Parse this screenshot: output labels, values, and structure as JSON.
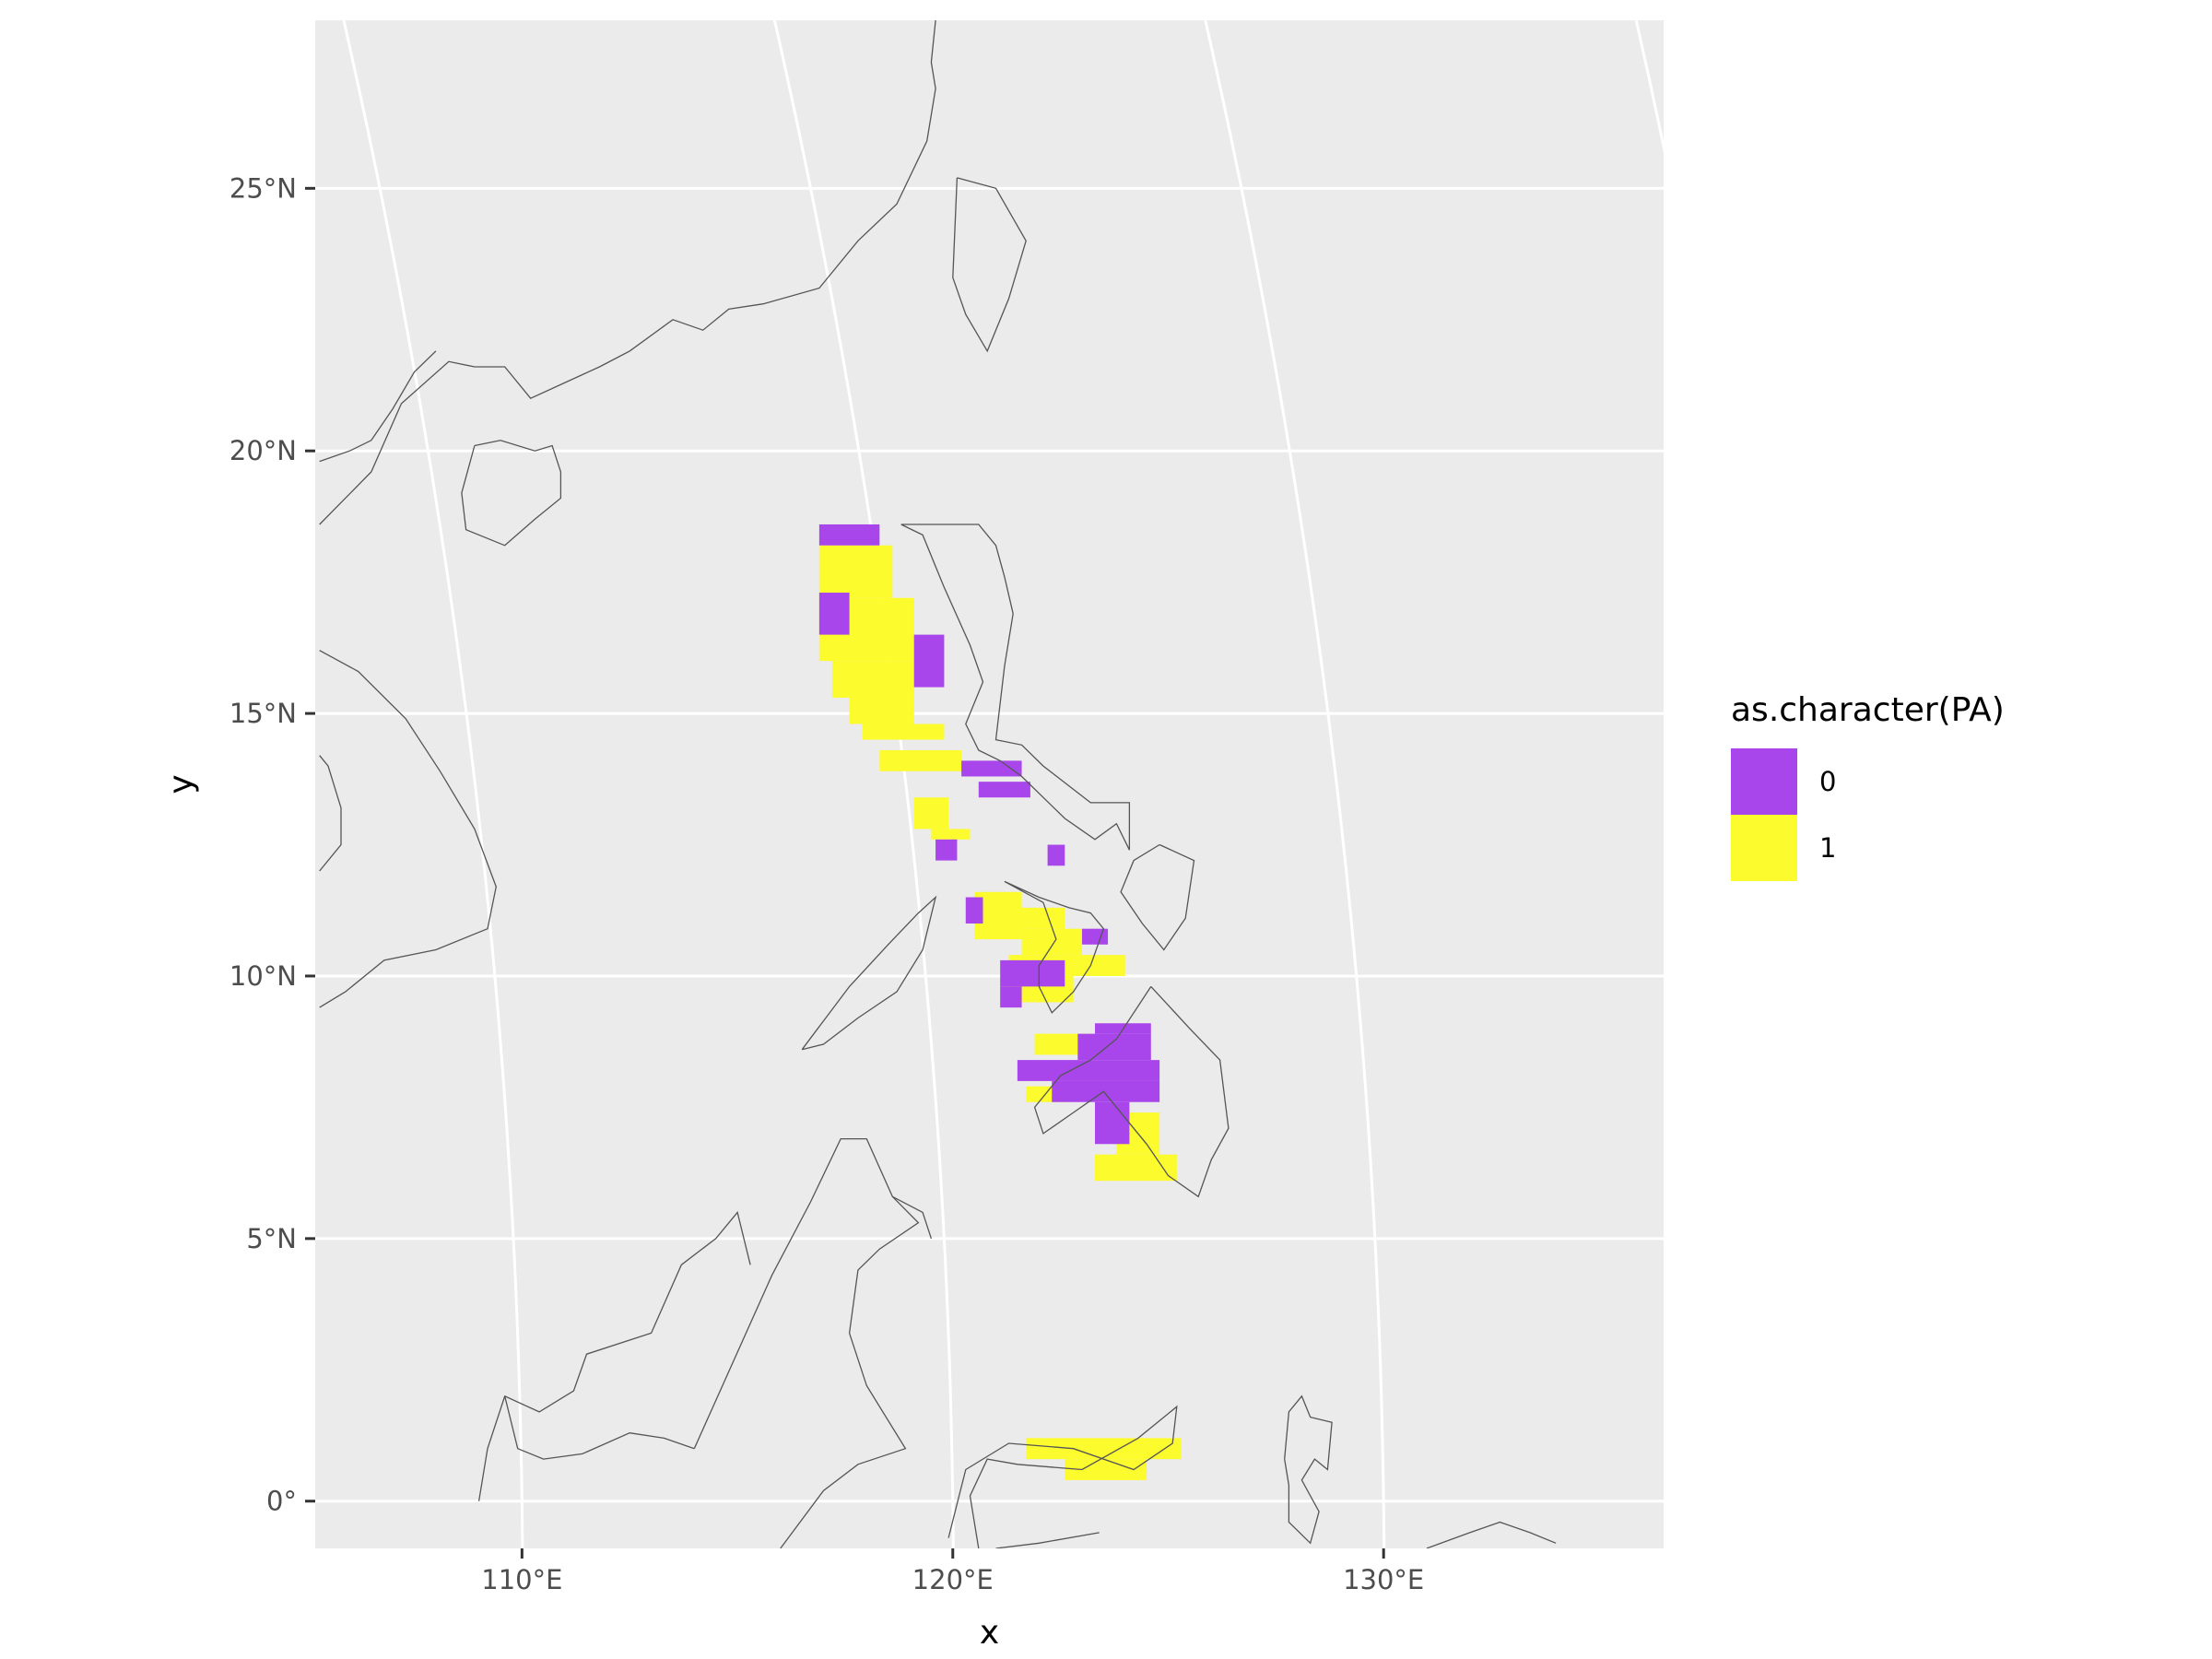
{
  "chart_data": {
    "type": "heatmap",
    "title": "",
    "xlabel": "x",
    "ylabel": "y",
    "xlim": [
      105.2,
      136.5
    ],
    "ylim": [
      -0.9,
      28.2
    ],
    "x_ticks": [
      {
        "value": 110,
        "label": "110°E"
      },
      {
        "value": 120,
        "label": "120°E"
      },
      {
        "value": 130,
        "label": "130°E"
      }
    ],
    "y_ticks": [
      {
        "value": 0,
        "label": "0°"
      },
      {
        "value": 5,
        "label": "5°N"
      },
      {
        "value": 10,
        "label": "10°N"
      },
      {
        "value": 15,
        "label": "15°N"
      },
      {
        "value": 20,
        "label": "20°N"
      },
      {
        "value": 25,
        "label": "25°N"
      }
    ],
    "legend": {
      "title": "as.character(PA)",
      "position": "right",
      "items": [
        {
          "label": "0",
          "color": "#A846EB"
        },
        {
          "label": "1",
          "color": "#FBFB2D"
        }
      ]
    },
    "colors": {
      "panel": "#EBEBEB",
      "grid": "#FFFFFF",
      "coastline": "#555555",
      "absent": "#A846EB",
      "present": "#FBFB2D"
    },
    "series": [
      {
        "name": "1",
        "cells": [
          [
            116.9,
            18.2,
            118.6,
            17.2
          ],
          [
            116.9,
            17.2,
            119.1,
            16.0
          ],
          [
            117.2,
            16.0,
            119.1,
            15.3
          ],
          [
            117.6,
            15.3,
            119.1,
            14.8
          ],
          [
            117.9,
            14.8,
            119.8,
            14.5
          ],
          [
            118.3,
            14.3,
            120.2,
            13.9
          ],
          [
            119.1,
            13.4,
            119.9,
            12.8
          ],
          [
            119.5,
            12.8,
            120.4,
            12.6
          ],
          [
            120.5,
            11.6,
            121.6,
            10.7
          ],
          [
            121.5,
            11.3,
            122.6,
            10.9
          ],
          [
            121.6,
            10.9,
            123.0,
            10.4
          ],
          [
            121.3,
            10.4,
            124.0,
            10.0
          ],
          [
            121.2,
            10.0,
            122.8,
            9.5
          ],
          [
            121.9,
            8.9,
            123.2,
            8.5
          ],
          [
            121.7,
            7.9,
            122.7,
            7.6
          ],
          [
            123.8,
            7.4,
            124.8,
            6.6
          ],
          [
            123.3,
            6.6,
            125.2,
            6.1
          ],
          [
            121.7,
            1.2,
            125.3,
            0.8
          ],
          [
            122.6,
            0.8,
            124.5,
            0.4
          ]
        ]
      },
      {
        "name": "0",
        "cells": [
          [
            116.9,
            18.6,
            118.3,
            18.2
          ],
          [
            116.9,
            17.3,
            117.6,
            16.5
          ],
          [
            119.1,
            16.5,
            119.8,
            15.5
          ],
          [
            120.2,
            14.1,
            121.6,
            13.8
          ],
          [
            120.6,
            13.7,
            121.8,
            13.4
          ],
          [
            119.6,
            12.6,
            120.1,
            12.2
          ],
          [
            122.2,
            12.5,
            122.6,
            12.1
          ],
          [
            120.3,
            11.5,
            120.7,
            11.0
          ],
          [
            123.0,
            10.9,
            123.6,
            10.6
          ],
          [
            121.1,
            10.3,
            122.6,
            9.8
          ],
          [
            121.1,
            9.8,
            121.6,
            9.4
          ],
          [
            123.3,
            9.1,
            124.6,
            8.9
          ],
          [
            122.9,
            8.9,
            124.6,
            8.4
          ],
          [
            121.5,
            8.4,
            124.8,
            8.0
          ],
          [
            122.3,
            8.0,
            124.8,
            7.6
          ],
          [
            123.3,
            7.6,
            124.1,
            6.8
          ]
        ]
      }
    ]
  },
  "map": {
    "coastlines": [
      [
        [
          105.3,
          18.6
        ],
        [
          106.5,
          19.6
        ],
        [
          107.2,
          20.9
        ],
        [
          108.3,
          21.7
        ],
        [
          108.9,
          21.6
        ],
        [
          109.6,
          21.6
        ],
        [
          110.2,
          21.0
        ],
        [
          111.8,
          21.6
        ],
        [
          112.5,
          21.9
        ],
        [
          113.5,
          22.5
        ],
        [
          114.2,
          22.3
        ],
        [
          114.8,
          22.7
        ],
        [
          115.6,
          22.8
        ],
        [
          116.9,
          23.1
        ],
        [
          117.8,
          24.0
        ],
        [
          118.7,
          24.7
        ],
        [
          119.4,
          25.9
        ],
        [
          119.6,
          26.9
        ],
        [
          119.5,
          27.4
        ],
        [
          119.6,
          28.2
        ]
      ],
      [
        [
          105.3,
          19.8
        ],
        [
          106.0,
          20.0
        ],
        [
          106.5,
          20.2
        ],
        [
          107.0,
          20.8
        ],
        [
          107.5,
          21.5
        ],
        [
          108.0,
          21.9
        ]
      ],
      [
        [
          105.3,
          16.2
        ],
        [
          106.2,
          15.8
        ],
        [
          107.3,
          14.9
        ],
        [
          108.1,
          13.9
        ],
        [
          108.9,
          12.8
        ],
        [
          109.4,
          11.7
        ],
        [
          109.2,
          10.9
        ],
        [
          108.0,
          10.5
        ],
        [
          106.8,
          10.3
        ],
        [
          105.9,
          9.7
        ],
        [
          105.3,
          9.4
        ]
      ],
      [
        [
          105.3,
          12.0
        ],
        [
          105.8,
          12.5
        ],
        [
          105.8,
          13.2
        ],
        [
          105.5,
          14.0
        ],
        [
          105.3,
          14.2
        ]
      ],
      [
        [
          108.9,
          20.1
        ],
        [
          109.5,
          20.2
        ],
        [
          110.3,
          20.0
        ],
        [
          110.7,
          20.1
        ],
        [
          110.9,
          19.6
        ],
        [
          110.9,
          19.1
        ],
        [
          110.3,
          18.7
        ],
        [
          109.6,
          18.2
        ],
        [
          108.7,
          18.5
        ],
        [
          108.6,
          19.2
        ],
        [
          108.9,
          20.1
        ]
      ],
      [
        [
          120.1,
          25.2
        ],
        [
          121.0,
          25.0
        ],
        [
          121.7,
          24.0
        ],
        [
          121.3,
          22.9
        ],
        [
          120.8,
          21.9
        ],
        [
          120.3,
          22.6
        ],
        [
          120.0,
          23.3
        ],
        [
          120.1,
          25.2
        ]
      ],
      [
        [
          118.8,
          18.6
        ],
        [
          119.3,
          18.4
        ],
        [
          119.8,
          17.4
        ],
        [
          120.4,
          16.3
        ],
        [
          120.7,
          15.6
        ],
        [
          120.3,
          14.8
        ],
        [
          120.6,
          14.3
        ],
        [
          121.1,
          14.1
        ],
        [
          121.6,
          13.8
        ],
        [
          122.1,
          13.4
        ],
        [
          122.6,
          13.0
        ],
        [
          123.3,
          12.6
        ],
        [
          123.8,
          12.9
        ],
        [
          124.1,
          12.4
        ],
        [
          124.1,
          13.3
        ],
        [
          123.2,
          13.3
        ],
        [
          122.1,
          14.0
        ],
        [
          121.6,
          14.4
        ],
        [
          121.0,
          14.5
        ],
        [
          121.2,
          15.9
        ],
        [
          121.4,
          16.9
        ],
        [
          121.2,
          17.6
        ],
        [
          121.0,
          18.2
        ],
        [
          120.6,
          18.6
        ],
        [
          119.8,
          18.6
        ],
        [
          118.8,
          18.6
        ]
      ],
      [
        [
          124.8,
          12.5
        ],
        [
          125.6,
          12.2
        ],
        [
          125.4,
          11.1
        ],
        [
          124.9,
          10.5
        ],
        [
          124.4,
          11.0
        ],
        [
          123.9,
          11.6
        ],
        [
          124.2,
          12.2
        ],
        [
          124.8,
          12.5
        ]
      ],
      [
        [
          121.2,
          11.8
        ],
        [
          122.1,
          11.4
        ],
        [
          122.4,
          10.7
        ],
        [
          122.0,
          10.2
        ],
        [
          122.0,
          9.8
        ],
        [
          122.3,
          9.3
        ],
        [
          122.8,
          9.7
        ],
        [
          123.2,
          10.2
        ],
        [
          123.5,
          10.9
        ],
        [
          123.2,
          11.2
        ],
        [
          122.7,
          11.3
        ],
        [
          122.0,
          11.5
        ],
        [
          121.2,
          11.8
        ]
      ],
      [
        [
          116.5,
          8.6
        ],
        [
          117.6,
          9.8
        ],
        [
          118.5,
          10.6
        ],
        [
          119.2,
          11.2
        ],
        [
          119.6,
          11.5
        ],
        [
          119.3,
          10.5
        ],
        [
          118.7,
          9.7
        ],
        [
          117.8,
          9.2
        ],
        [
          117.0,
          8.7
        ],
        [
          116.5,
          8.6
        ]
      ],
      [
        [
          124.6,
          9.8
        ],
        [
          125.5,
          9.0
        ],
        [
          126.2,
          8.4
        ],
        [
          126.4,
          7.1
        ],
        [
          126.0,
          6.5
        ],
        [
          125.7,
          5.8
        ],
        [
          125.0,
          6.2
        ],
        [
          124.5,
          6.8
        ],
        [
          124.0,
          7.3
        ],
        [
          123.5,
          7.8
        ],
        [
          122.8,
          7.4
        ],
        [
          122.1,
          7.0
        ],
        [
          121.9,
          7.5
        ],
        [
          122.5,
          8.1
        ],
        [
          123.2,
          8.4
        ],
        [
          123.8,
          8.8
        ],
        [
          124.6,
          9.8
        ]
      ],
      [
        [
          114.0,
          1.0
        ],
        [
          115.8,
          4.3
        ],
        [
          116.7,
          5.7
        ],
        [
          117.4,
          6.9
        ],
        [
          118.0,
          6.9
        ],
        [
          118.6,
          5.8
        ],
        [
          119.2,
          5.3
        ],
        [
          118.3,
          4.8
        ],
        [
          117.8,
          4.4
        ],
        [
          117.6,
          3.2
        ],
        [
          118.0,
          2.2
        ],
        [
          118.9,
          1.0
        ],
        [
          117.8,
          0.7
        ],
        [
          117.0,
          0.2
        ],
        [
          116.0,
          -0.9
        ]
      ],
      [
        [
          109.0,
          0.0
        ],
        [
          109.2,
          1.0
        ],
        [
          109.6,
          2.0
        ],
        [
          110.4,
          1.7
        ],
        [
          111.2,
          2.1
        ],
        [
          111.5,
          2.8
        ],
        [
          113.0,
          3.2
        ],
        [
          113.7,
          4.5
        ],
        [
          114.5,
          5.0
        ],
        [
          115.0,
          5.5
        ],
        [
          115.3,
          4.5
        ]
      ],
      [
        [
          109.6,
          2.0
        ],
        [
          109.9,
          1.0
        ],
        [
          110.5,
          0.8
        ],
        [
          111.4,
          0.9
        ],
        [
          112.5,
          1.3
        ],
        [
          113.3,
          1.2
        ],
        [
          114.0,
          1.0
        ]
      ],
      [
        [
          118.6,
          5.8
        ],
        [
          119.3,
          5.5
        ],
        [
          119.5,
          5.0
        ]
      ],
      [
        [
          119.9,
          -0.7
        ],
        [
          120.3,
          0.6
        ],
        [
          121.3,
          1.1
        ],
        [
          122.8,
          1.0
        ],
        [
          124.2,
          0.6
        ],
        [
          125.1,
          1.1
        ],
        [
          125.2,
          1.8
        ],
        [
          124.3,
          1.2
        ],
        [
          123.0,
          0.6
        ],
        [
          121.5,
          0.7
        ],
        [
          120.8,
          0.8
        ],
        [
          120.4,
          0.1
        ],
        [
          120.6,
          -0.9
        ]
      ],
      [
        [
          127.7,
          0.8
        ],
        [
          127.8,
          1.7
        ],
        [
          128.1,
          2.0
        ],
        [
          128.3,
          1.6
        ],
        [
          128.8,
          1.5
        ],
        [
          128.7,
          0.6
        ],
        [
          128.4,
          0.8
        ],
        [
          128.1,
          0.4
        ],
        [
          128.5,
          -0.2
        ],
        [
          128.3,
          -0.8
        ],
        [
          127.8,
          -0.4
        ],
        [
          127.8,
          0.3
        ],
        [
          127.7,
          0.8
        ]
      ],
      [
        [
          121.0,
          -0.9
        ],
        [
          122.0,
          -0.8
        ],
        [
          123.4,
          -0.6
        ]
      ],
      [
        [
          131.0,
          -0.9
        ],
        [
          132.0,
          -0.6
        ],
        [
          132.7,
          -0.4
        ],
        [
          133.4,
          -0.6
        ],
        [
          134.0,
          -0.8
        ]
      ]
    ]
  }
}
